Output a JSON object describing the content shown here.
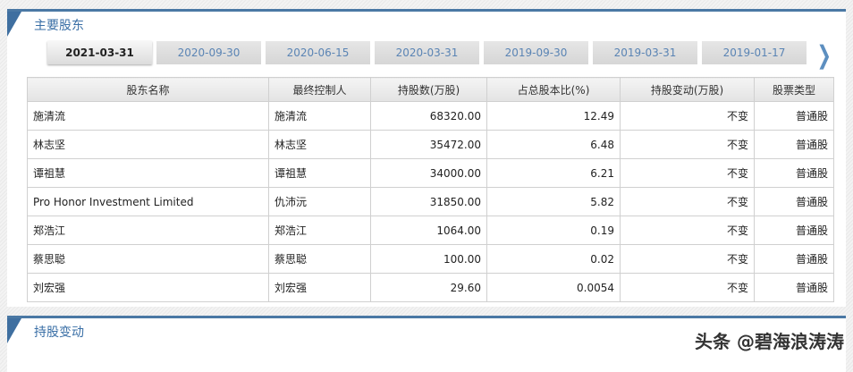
{
  "section1": {
    "title": "主要股东"
  },
  "tabs": [
    "2021-03-31",
    "2020-09-30",
    "2020-06-15",
    "2020-03-31",
    "2019-09-30",
    "2019-03-31",
    "2019-01-17"
  ],
  "table": {
    "headers": [
      "股东名称",
      "最终控制人",
      "持股数(万股)",
      "占总股本比(%)",
      "持股变动(万股)",
      "股票类型"
    ],
    "rows": [
      [
        "施清流",
        "施清流",
        "68320.00",
        "12.49",
        "不变",
        "普通股"
      ],
      [
        "林志坚",
        "林志坚",
        "35472.00",
        "6.48",
        "不变",
        "普通股"
      ],
      [
        "谭祖慧",
        "谭祖慧",
        "34000.00",
        "6.21",
        "不变",
        "普通股"
      ],
      [
        "Pro Honor Investment Limited",
        "仇沛沅",
        "31850.00",
        "5.82",
        "不变",
        "普通股"
      ],
      [
        "郑浩江",
        "郑浩江",
        "1064.00",
        "0.19",
        "不变",
        "普通股"
      ],
      [
        "蔡思聪",
        "蔡思聪",
        "100.00",
        "0.02",
        "不变",
        "普通股"
      ],
      [
        "刘宏强",
        "刘宏强",
        "29.60",
        "0.0054",
        "不变",
        "普通股"
      ]
    ]
  },
  "section2": {
    "title": "持股变动"
  },
  "watermark": "头条 @碧海浪涛涛",
  "colors": {
    "accent": "#4a78a4"
  }
}
